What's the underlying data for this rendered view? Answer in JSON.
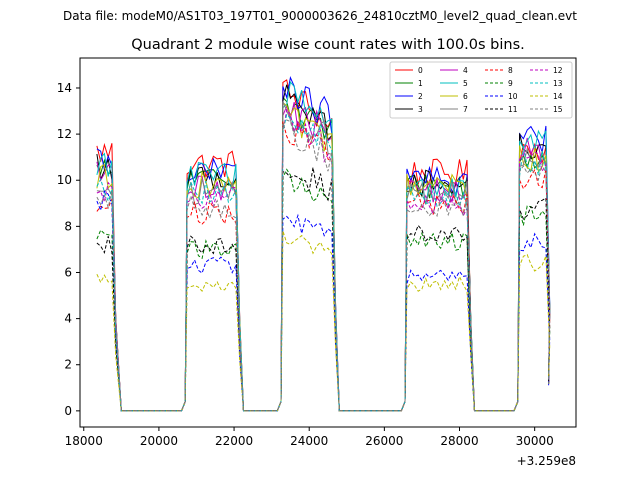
{
  "chart_data": {
    "type": "line",
    "suptitle": "Data file: modeM0/AS1T03_197T01_9000003626_24810cztM0_level2_quad_clean.evt",
    "title": "Quadrant 2 module wise count rates with 100.0s bins.",
    "xlabel": "",
    "ylabel": "",
    "x_offset_label": "+3.259e8",
    "xlim": [
      17900,
      31100
    ],
    "ylim": [
      -0.7,
      15.3
    ],
    "xticks": [
      18000,
      20000,
      22000,
      24000,
      26000,
      28000,
      30000
    ],
    "xtick_labels": [
      "18000",
      "20000",
      "22000",
      "24000",
      "26000",
      "28000",
      "30000"
    ],
    "yticks": [
      0,
      2,
      4,
      6,
      8,
      10,
      12,
      14
    ],
    "ytick_labels": [
      "0",
      "2",
      "4",
      "6",
      "8",
      "10",
      "12",
      "14"
    ],
    "legend_position": "upper right",
    "segments": [
      {
        "start": 18350,
        "end": 18850
      },
      {
        "start": 20750,
        "end": 22100
      },
      {
        "start": 23300,
        "end": 24650
      },
      {
        "start": 26600,
        "end": 28250
      },
      {
        "start": 29600,
        "end": 30350
      }
    ],
    "series": [
      {
        "name": "0",
        "color": "#ff0000",
        "dash": false,
        "levels": [
          11.2,
          10.7,
          12.4,
          10.3,
          11.4
        ]
      },
      {
        "name": "1",
        "color": "#008000",
        "dash": false,
        "levels": [
          10.3,
          10.0,
          12.0,
          9.8,
          11.0
        ]
      },
      {
        "name": "2",
        "color": "#0000ff",
        "dash": false,
        "levels": [
          10.9,
          10.3,
          12.6,
          10.0,
          11.8
        ]
      },
      {
        "name": "3",
        "color": "#000000",
        "dash": false,
        "levels": [
          10.6,
          10.1,
          12.2,
          9.9,
          11.4
        ]
      },
      {
        "name": "4",
        "color": "#bf00bf",
        "dash": false,
        "levels": [
          10.2,
          9.7,
          11.8,
          9.6,
          11.2
        ]
      },
      {
        "name": "5",
        "color": "#00bfbf",
        "dash": false,
        "levels": [
          10.8,
          10.2,
          12.3,
          9.5,
          11.6
        ]
      },
      {
        "name": "6",
        "color": "#bfbf00",
        "dash": false,
        "levels": [
          10.1,
          9.8,
          11.4,
          9.7,
          11.0
        ]
      },
      {
        "name": "7",
        "color": "#808080",
        "dash": false,
        "levels": [
          9.9,
          9.5,
          11.6,
          9.4,
          11.0
        ]
      },
      {
        "name": "8",
        "color": "#ff0000",
        "dash": true,
        "levels": [
          8.9,
          8.6,
          11.0,
          9.0,
          10.0
        ]
      },
      {
        "name": "9",
        "color": "#008000",
        "dash": true,
        "levels": [
          7.6,
          7.0,
          9.0,
          7.4,
          8.4
        ]
      },
      {
        "name": "10",
        "color": "#0000ff",
        "dash": true,
        "levels": [
          9.2,
          6.3,
          7.5,
          5.8,
          7.3
        ]
      },
      {
        "name": "11",
        "color": "#000000",
        "dash": true,
        "levels": [
          7.3,
          7.2,
          9.5,
          7.6,
          8.8
        ]
      },
      {
        "name": "12",
        "color": "#bf00bf",
        "dash": true,
        "levels": [
          9.4,
          9.2,
          11.2,
          9.0,
          10.6
        ]
      },
      {
        "name": "13",
        "color": "#00bfbf",
        "dash": true,
        "levels": [
          9.6,
          9.4,
          11.4,
          9.2,
          10.8
        ]
      },
      {
        "name": "14",
        "color": "#bfbf00",
        "dash": true,
        "levels": [
          5.8,
          5.4,
          6.7,
          5.5,
          6.4
        ]
      },
      {
        "name": "15",
        "color": "#808080",
        "dash": true,
        "levels": [
          9.0,
          8.8,
          10.8,
          8.8,
          10.2
        ]
      }
    ]
  }
}
